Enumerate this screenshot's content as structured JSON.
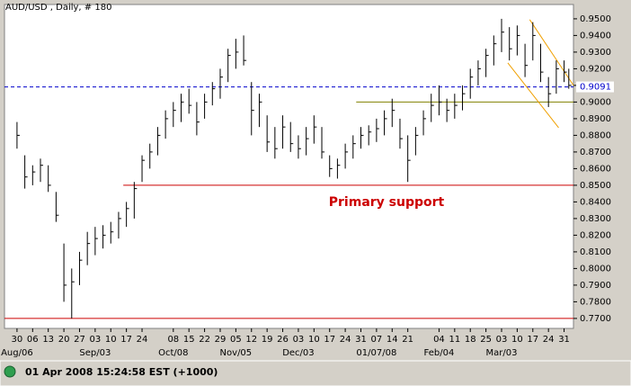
{
  "chart_data": {
    "type": "hlc",
    "title": "AUD/USD , Daily, # 180",
    "color": "#000000",
    "x": [
      0,
      0.5,
      1,
      1.5,
      2,
      2.5,
      3,
      3.5,
      4,
      4.5,
      5,
      5.5,
      6,
      6.5,
      7,
      7.5,
      8,
      8.5,
      9,
      9.5,
      10,
      10.5,
      11,
      11.5,
      12,
      12.5,
      13,
      13.5,
      14,
      14.5,
      15,
      15.5,
      16,
      16.5,
      17,
      17.5,
      18,
      18.5,
      19,
      19.5,
      20,
      20.5,
      21,
      21.5,
      22,
      22.5,
      23,
      23.5,
      24,
      24.5,
      25,
      25.5,
      26,
      26.5,
      27,
      27.5,
      28,
      28.5,
      29,
      29.5,
      30,
      30.5,
      31,
      31.5,
      32,
      32.5,
      33,
      33.5,
      34,
      34.5,
      35,
      35.3
    ],
    "high": [
      0.888,
      0.868,
      0.862,
      0.866,
      0.862,
      0.846,
      0.815,
      0.8,
      0.81,
      0.822,
      0.825,
      0.826,
      0.828,
      0.834,
      0.84,
      0.852,
      0.868,
      0.875,
      0.885,
      0.895,
      0.9,
      0.905,
      0.908,
      0.9,
      0.905,
      0.912,
      0.92,
      0.932,
      0.938,
      0.94,
      0.912,
      0.905,
      0.892,
      0.885,
      0.892,
      0.888,
      0.88,
      0.885,
      0.892,
      0.885,
      0.868,
      0.866,
      0.875,
      0.88,
      0.885,
      0.886,
      0.89,
      0.895,
      0.902,
      0.89,
      0.88,
      0.885,
      0.895,
      0.905,
      0.91,
      0.902,
      0.905,
      0.91,
      0.92,
      0.925,
      0.932,
      0.94,
      0.95,
      0.945,
      0.946,
      0.935,
      0.948,
      0.935,
      0.915,
      0.925,
      0.925,
      0.92
    ],
    "low": [
      0.872,
      0.848,
      0.85,
      0.852,
      0.846,
      0.828,
      0.78,
      0.77,
      0.79,
      0.802,
      0.808,
      0.812,
      0.815,
      0.818,
      0.825,
      0.83,
      0.852,
      0.86,
      0.868,
      0.878,
      0.885,
      0.888,
      0.893,
      0.88,
      0.89,
      0.898,
      0.902,
      0.912,
      0.92,
      0.922,
      0.88,
      0.885,
      0.87,
      0.866,
      0.872,
      0.87,
      0.866,
      0.868,
      0.875,
      0.866,
      0.855,
      0.854,
      0.86,
      0.866,
      0.872,
      0.874,
      0.876,
      0.88,
      0.885,
      0.872,
      0.852,
      0.868,
      0.88,
      0.888,
      0.892,
      0.888,
      0.89,
      0.895,
      0.902,
      0.91,
      0.915,
      0.922,
      0.93,
      0.925,
      0.928,
      0.915,
      0.925,
      0.912,
      0.897,
      0.905,
      0.912,
      0.908
    ],
    "close": [
      0.88,
      0.855,
      0.858,
      0.862,
      0.85,
      0.832,
      0.79,
      0.792,
      0.805,
      0.815,
      0.818,
      0.82,
      0.822,
      0.83,
      0.836,
      0.848,
      0.865,
      0.87,
      0.88,
      0.89,
      0.895,
      0.9,
      0.898,
      0.888,
      0.9,
      0.908,
      0.915,
      0.928,
      0.93,
      0.925,
      0.895,
      0.9,
      0.876,
      0.872,
      0.885,
      0.875,
      0.872,
      0.878,
      0.885,
      0.87,
      0.86,
      0.862,
      0.87,
      0.875,
      0.88,
      0.882,
      0.884,
      0.89,
      0.895,
      0.878,
      0.865,
      0.88,
      0.89,
      0.898,
      0.9,
      0.895,
      0.898,
      0.905,
      0.915,
      0.92,
      0.928,
      0.935,
      0.942,
      0.932,
      0.94,
      0.922,
      0.94,
      0.918,
      0.905,
      0.92,
      0.918,
      0.91
    ],
    "xlim": [
      -0.8,
      35.6
    ],
    "ylim": [
      0.764,
      0.9586
    ],
    "xticks": [
      {
        "value": 0,
        "label": "30"
      },
      {
        "value": 1,
        "label": "06"
      },
      {
        "value": 2,
        "label": "13"
      },
      {
        "value": 3,
        "label": "20"
      },
      {
        "value": 4,
        "label": "27"
      },
      {
        "value": 5,
        "label": "03"
      },
      {
        "value": 6,
        "label": "10"
      },
      {
        "value": 7,
        "label": "17"
      },
      {
        "value": 8,
        "label": "24"
      },
      {
        "value": 10,
        "label": "08"
      },
      {
        "value": 11,
        "label": "15"
      },
      {
        "value": 12,
        "label": "22"
      },
      {
        "value": 13,
        "label": "29"
      },
      {
        "value": 14,
        "label": "05"
      },
      {
        "value": 15,
        "label": "12"
      },
      {
        "value": 16,
        "label": "19"
      },
      {
        "value": 17,
        "label": "26"
      },
      {
        "value": 18,
        "label": "03"
      },
      {
        "value": 19,
        "label": "10"
      },
      {
        "value": 20,
        "label": "17"
      },
      {
        "value": 21,
        "label": "24"
      },
      {
        "value": 22,
        "label": "31"
      },
      {
        "value": 23,
        "label": "07"
      },
      {
        "value": 24,
        "label": "14"
      },
      {
        "value": 25,
        "label": "21"
      },
      {
        "value": 27,
        "label": "04"
      },
      {
        "value": 28,
        "label": "11"
      },
      {
        "value": 29,
        "label": "18"
      },
      {
        "value": 30,
        "label": "25"
      },
      {
        "value": 31,
        "label": "03"
      },
      {
        "value": 32,
        "label": "10"
      },
      {
        "value": 33,
        "label": "17"
      },
      {
        "value": 34,
        "label": "24"
      },
      {
        "value": 35,
        "label": "31"
      }
    ],
    "month_labels": [
      {
        "value": 0,
        "label": "Aug/06"
      },
      {
        "value": 5,
        "label": "Sep/03"
      },
      {
        "value": 10,
        "label": "Oct/08"
      },
      {
        "value": 14,
        "label": "Nov/05"
      },
      {
        "value": 18,
        "label": "Dec/03"
      },
      {
        "value": 23,
        "label": "01/07/08"
      },
      {
        "value": 27,
        "label": "Feb/04"
      },
      {
        "value": 31,
        "label": "Mar/03"
      }
    ],
    "yticks": [
      {
        "value": 0.95,
        "label": "0.9500"
      },
      {
        "value": 0.94,
        "label": "0.9400"
      },
      {
        "value": 0.93,
        "label": "0.9300"
      },
      {
        "value": 0.92,
        "label": "0.9200"
      },
      {
        "value": 0.91,
        "label": "0.9100"
      },
      {
        "value": 0.9,
        "label": "0.9000"
      },
      {
        "value": 0.89,
        "label": "0.8900"
      },
      {
        "value": 0.88,
        "label": "0.8800"
      },
      {
        "value": 0.87,
        "label": "0.8700"
      },
      {
        "value": 0.86,
        "label": "0.8600"
      },
      {
        "value": 0.85,
        "label": "0.8500"
      },
      {
        "value": 0.84,
        "label": "0.8400"
      },
      {
        "value": 0.83,
        "label": "0.8300"
      },
      {
        "value": 0.82,
        "label": "0.8200"
      },
      {
        "value": 0.81,
        "label": "0.8100"
      },
      {
        "value": 0.8,
        "label": "0.8000"
      },
      {
        "value": 0.79,
        "label": "0.7900"
      },
      {
        "value": 0.78,
        "label": "0.7800"
      },
      {
        "value": 0.77,
        "label": "0.7700"
      }
    ],
    "hlines": [
      {
        "value": 0.9091,
        "label": "0.9091",
        "color": "#0000cc",
        "dashed": true,
        "x_start": -0.8
      },
      {
        "value": 0.9,
        "color": "#808000",
        "dashed": false,
        "x_start": 21.7
      },
      {
        "value": 0.85,
        "color": "#cc0000",
        "dashed": false,
        "x_start": 6.8
      },
      {
        "value": 0.77,
        "color": "#cc0000",
        "dashed": false,
        "x_start": -0.8
      }
    ],
    "trendlines": [
      {
        "x": [
          32.8,
          35.6
        ],
        "y": [
          0.9495,
          0.91
        ],
        "color": "#f0a000"
      },
      {
        "x": [
          31.4,
          34.65
        ],
        "y": [
          0.9235,
          0.8846
        ],
        "color": "#f0a000"
      }
    ],
    "annotation": {
      "text": "Primary support",
      "color": "#cc0000"
    }
  },
  "status": "01 Apr 2008 15:24:58 EST (+1000)"
}
